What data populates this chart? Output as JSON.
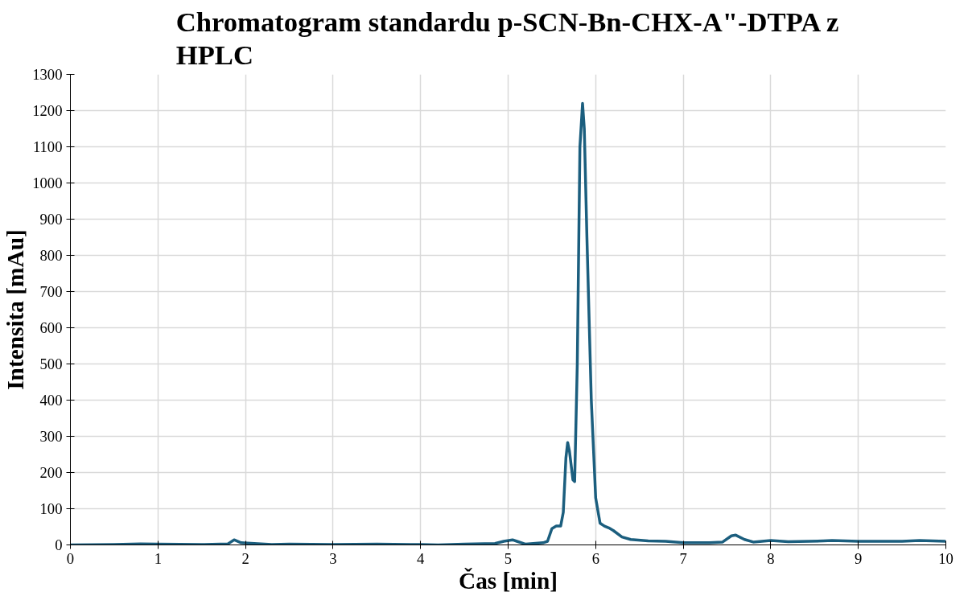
{
  "chart_data": {
    "type": "line",
    "title": "Chromatogram standardu p-SCN-Bn-CHX-A\"-DTPA z HPLC",
    "xlabel": "Čas [min]",
    "ylabel": "Intensita [mAu]",
    "x": [
      0,
      0.5,
      0.8,
      1,
      1.5,
      1.8,
      1.87,
      1.95,
      2.1,
      2.3,
      2.5,
      3,
      3.5,
      4,
      4.2,
      4.5,
      4.85,
      4.95,
      5.05,
      5.1,
      5.2,
      5.4,
      5.45,
      5.5,
      5.55,
      5.6,
      5.63,
      5.66,
      5.68,
      5.7,
      5.74,
      5.76,
      5.79,
      5.82,
      5.85,
      5.87,
      5.9,
      5.95,
      6.0,
      6.05,
      6.1,
      6.15,
      6.2,
      6.3,
      6.4,
      6.6,
      6.8,
      7,
      7.3,
      7.45,
      7.55,
      7.6,
      7.7,
      7.8,
      8,
      8.2,
      8.6,
      8.7,
      9,
      9.5,
      9.7,
      10
    ],
    "series": [
      {
        "color": "#1b5e7e",
        "values": [
          0,
          1,
          3,
          2,
          1,
          3,
          14,
          6,
          4,
          1,
          2,
          1,
          2,
          1,
          0,
          2,
          4,
          10,
          14,
          10,
          2,
          6,
          10,
          45,
          52,
          52,
          90,
          240,
          283,
          260,
          180,
          175,
          500,
          1100,
          1220,
          1150,
          850,
          400,
          130,
          60,
          52,
          47,
          40,
          22,
          15,
          11,
          10,
          6,
          6,
          8,
          25,
          27,
          15,
          8,
          12,
          9,
          11,
          12,
          10,
          10,
          12,
          10
        ]
      }
    ],
    "xlim": [
      0,
      10
    ],
    "ylim": [
      0,
      1300
    ],
    "xticks": [
      0,
      1,
      2,
      3,
      4,
      5,
      6,
      7,
      8,
      9,
      10
    ],
    "yticks": [
      0,
      100,
      200,
      300,
      400,
      500,
      600,
      700,
      800,
      900,
      1000,
      1100,
      1200,
      1300
    ],
    "grid": true,
    "marker": "none",
    "line_style": "solid"
  }
}
